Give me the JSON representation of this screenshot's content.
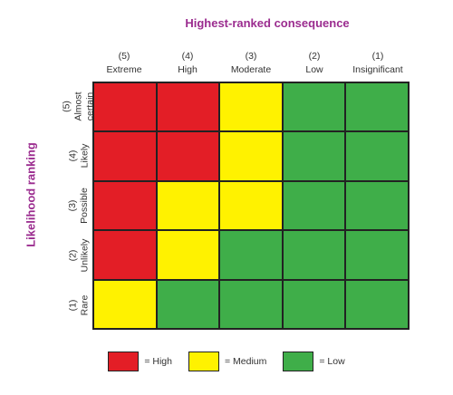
{
  "titles": {
    "consequence": "Highest-ranked consequence",
    "likelihood": "Likelihood ranking"
  },
  "colors": {
    "high": "#e31e26",
    "medium": "#fff200",
    "low": "#3fae49",
    "title": "#9b2c8f"
  },
  "columns": [
    {
      "num": "(5)",
      "label": "Extreme"
    },
    {
      "num": "(4)",
      "label": "High"
    },
    {
      "num": "(3)",
      "label": "Moderate"
    },
    {
      "num": "(2)",
      "label": "Low"
    },
    {
      "num": "(1)",
      "label": "Insignificant"
    }
  ],
  "rows": [
    {
      "num": "(5)",
      "label_lines": [
        "Almost",
        "certain"
      ]
    },
    {
      "num": "(4)",
      "label_lines": [
        "Likely"
      ]
    },
    {
      "num": "(3)",
      "label_lines": [
        "Possible"
      ]
    },
    {
      "num": "(2)",
      "label_lines": [
        "Unlikely"
      ]
    },
    {
      "num": "(1)",
      "label_lines": [
        "Rare"
      ]
    }
  ],
  "matrix": [
    [
      "high",
      "high",
      "medium",
      "low",
      "low"
    ],
    [
      "high",
      "high",
      "medium",
      "low",
      "low"
    ],
    [
      "high",
      "medium",
      "medium",
      "low",
      "low"
    ],
    [
      "high",
      "medium",
      "low",
      "low",
      "low"
    ],
    [
      "medium",
      "low",
      "low",
      "low",
      "low"
    ]
  ],
  "legend": [
    {
      "level": "high",
      "label": "= High"
    },
    {
      "level": "medium",
      "label": "= Medium"
    },
    {
      "level": "low",
      "label": "= Low"
    }
  ]
}
